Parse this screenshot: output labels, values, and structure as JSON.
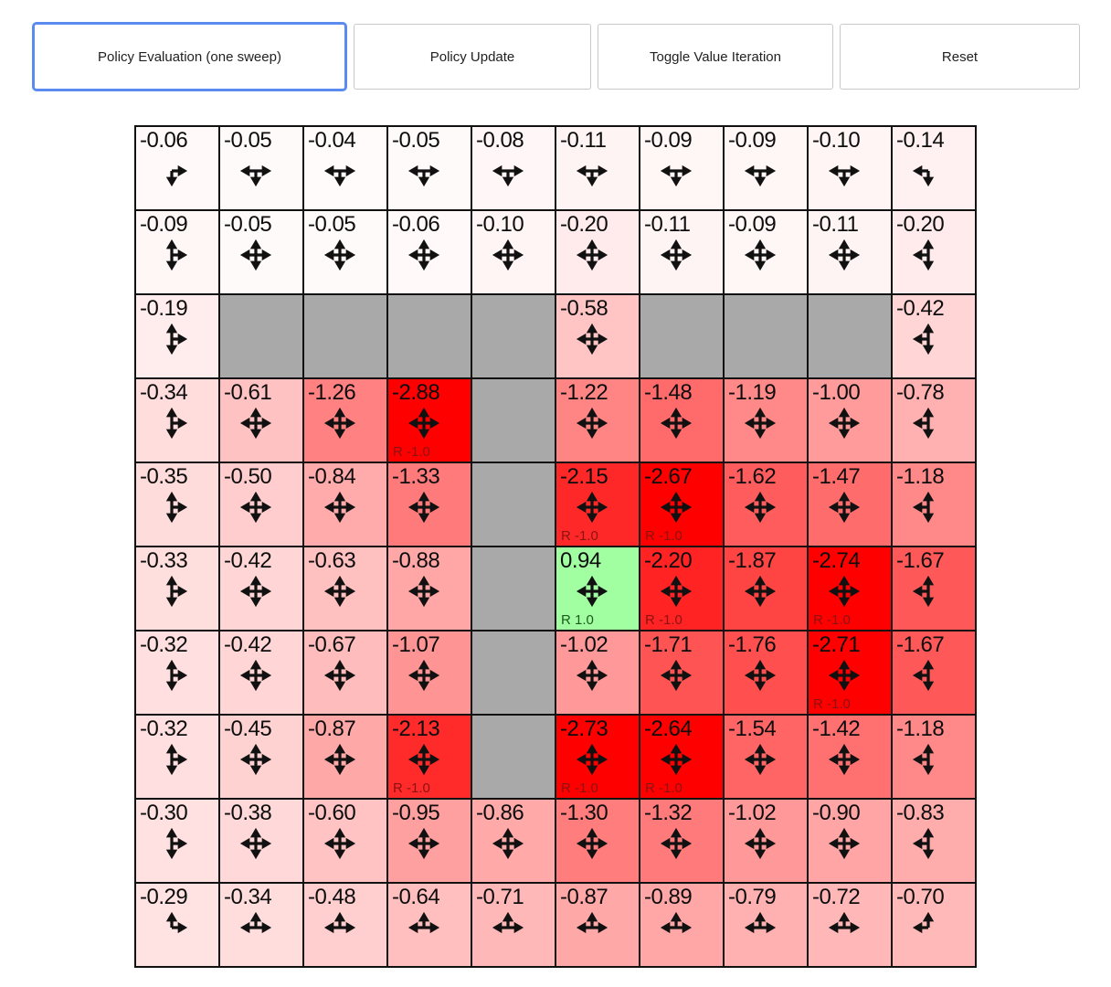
{
  "toolbar": {
    "buttons": [
      {
        "label": "Policy Evaluation (one sweep)",
        "active": true
      },
      {
        "label": "Policy Update",
        "active": false
      },
      {
        "label": "Toggle Value Iteration",
        "active": false
      },
      {
        "label": "Reset",
        "active": false
      }
    ]
  },
  "colors": {
    "accent_focus_border": "#5b8bef",
    "button_border": "#c9c9c9",
    "wall": "#a9a9a9",
    "grid_line": "#111111",
    "arrow": "#111111",
    "value_text": "#0d0d0d",
    "reward_negative_label": "#8b1212",
    "reward_positive_label": "#1c5a1c"
  },
  "grid": {
    "rows": 10,
    "cols": 10,
    "cells": [
      [
        {
          "v": "-0.06",
          "d": "rd"
        },
        {
          "v": "-0.05",
          "d": "lrd"
        },
        {
          "v": "-0.04",
          "d": "lrd"
        },
        {
          "v": "-0.05",
          "d": "lrd"
        },
        {
          "v": "-0.08",
          "d": "lrd"
        },
        {
          "v": "-0.11",
          "d": "lrd"
        },
        {
          "v": "-0.09",
          "d": "lrd"
        },
        {
          "v": "-0.09",
          "d": "lrd"
        },
        {
          "v": "-0.10",
          "d": "lrd"
        },
        {
          "v": "-0.14",
          "d": "ld"
        }
      ],
      [
        {
          "v": "-0.09",
          "d": "urd"
        },
        {
          "v": "-0.05",
          "d": "ulrd"
        },
        {
          "v": "-0.05",
          "d": "ulrd"
        },
        {
          "v": "-0.06",
          "d": "ulrd"
        },
        {
          "v": "-0.10",
          "d": "ulrd"
        },
        {
          "v": "-0.20",
          "d": "ulrd"
        },
        {
          "v": "-0.11",
          "d": "ulrd"
        },
        {
          "v": "-0.09",
          "d": "ulrd"
        },
        {
          "v": "-0.11",
          "d": "ulrd"
        },
        {
          "v": "-0.20",
          "d": "uld"
        }
      ],
      [
        {
          "v": "-0.19",
          "d": "urd"
        },
        {
          "wall": true
        },
        {
          "wall": true
        },
        {
          "wall": true
        },
        {
          "wall": true
        },
        {
          "v": "-0.58",
          "d": "ulrd"
        },
        {
          "wall": true
        },
        {
          "wall": true
        },
        {
          "wall": true
        },
        {
          "v": "-0.42",
          "d": "uld"
        }
      ],
      [
        {
          "v": "-0.34",
          "d": "urd"
        },
        {
          "v": "-0.61",
          "d": "ulrd"
        },
        {
          "v": "-1.26",
          "d": "ulrd"
        },
        {
          "v": "-2.88",
          "d": "ulrd",
          "r": "R -1.0"
        },
        {
          "wall": true
        },
        {
          "v": "-1.22",
          "d": "ulrd"
        },
        {
          "v": "-1.48",
          "d": "ulrd"
        },
        {
          "v": "-1.19",
          "d": "ulrd"
        },
        {
          "v": "-1.00",
          "d": "ulrd"
        },
        {
          "v": "-0.78",
          "d": "uld"
        }
      ],
      [
        {
          "v": "-0.35",
          "d": "urd"
        },
        {
          "v": "-0.50",
          "d": "ulrd"
        },
        {
          "v": "-0.84",
          "d": "ulrd"
        },
        {
          "v": "-1.33",
          "d": "ulrd"
        },
        {
          "wall": true
        },
        {
          "v": "-2.15",
          "d": "ulrd",
          "r": "R -1.0"
        },
        {
          "v": "-2.67",
          "d": "ulrd",
          "r": "R -1.0"
        },
        {
          "v": "-1.62",
          "d": "ulrd"
        },
        {
          "v": "-1.47",
          "d": "ulrd"
        },
        {
          "v": "-1.18",
          "d": "uld"
        }
      ],
      [
        {
          "v": "-0.33",
          "d": "urd"
        },
        {
          "v": "-0.42",
          "d": "ulrd"
        },
        {
          "v": "-0.63",
          "d": "ulrd"
        },
        {
          "v": "-0.88",
          "d": "ulrd"
        },
        {
          "wall": true
        },
        {
          "v": "0.94",
          "d": "ulrd",
          "r": "R 1.0"
        },
        {
          "v": "-2.20",
          "d": "ulrd",
          "r": "R -1.0"
        },
        {
          "v": "-1.87",
          "d": "ulrd"
        },
        {
          "v": "-2.74",
          "d": "ulrd",
          "r": "R -1.0"
        },
        {
          "v": "-1.67",
          "d": "uld"
        }
      ],
      [
        {
          "v": "-0.32",
          "d": "urd"
        },
        {
          "v": "-0.42",
          "d": "ulrd"
        },
        {
          "v": "-0.67",
          "d": "ulrd"
        },
        {
          "v": "-1.07",
          "d": "ulrd"
        },
        {
          "wall": true
        },
        {
          "v": "-1.02",
          "d": "ulrd"
        },
        {
          "v": "-1.71",
          "d": "ulrd"
        },
        {
          "v": "-1.76",
          "d": "ulrd"
        },
        {
          "v": "-2.71",
          "d": "ulrd",
          "r": "R -1.0"
        },
        {
          "v": "-1.67",
          "d": "uld"
        }
      ],
      [
        {
          "v": "-0.32",
          "d": "urd"
        },
        {
          "v": "-0.45",
          "d": "ulrd"
        },
        {
          "v": "-0.87",
          "d": "ulrd"
        },
        {
          "v": "-2.13",
          "d": "ulrd",
          "r": "R -1.0"
        },
        {
          "wall": true
        },
        {
          "v": "-2.73",
          "d": "ulrd",
          "r": "R -1.0"
        },
        {
          "v": "-2.64",
          "d": "ulrd",
          "r": "R -1.0"
        },
        {
          "v": "-1.54",
          "d": "ulrd"
        },
        {
          "v": "-1.42",
          "d": "ulrd"
        },
        {
          "v": "-1.18",
          "d": "uld"
        }
      ],
      [
        {
          "v": "-0.30",
          "d": "urd"
        },
        {
          "v": "-0.38",
          "d": "ulrd"
        },
        {
          "v": "-0.60",
          "d": "ulrd"
        },
        {
          "v": "-0.95",
          "d": "ulrd"
        },
        {
          "v": "-0.86",
          "d": "ulrd"
        },
        {
          "v": "-1.30",
          "d": "ulrd"
        },
        {
          "v": "-1.32",
          "d": "ulrd"
        },
        {
          "v": "-1.02",
          "d": "ulrd"
        },
        {
          "v": "-0.90",
          "d": "ulrd"
        },
        {
          "v": "-0.83",
          "d": "uld"
        }
      ],
      [
        {
          "v": "-0.29",
          "d": "ur"
        },
        {
          "v": "-0.34",
          "d": "ulr"
        },
        {
          "v": "-0.48",
          "d": "ulr"
        },
        {
          "v": "-0.64",
          "d": "ulr"
        },
        {
          "v": "-0.71",
          "d": "ulr"
        },
        {
          "v": "-0.87",
          "d": "ulr"
        },
        {
          "v": "-0.89",
          "d": "ulr"
        },
        {
          "v": "-0.79",
          "d": "ulr"
        },
        {
          "v": "-0.72",
          "d": "ulr"
        },
        {
          "v": "-0.70",
          "d": "ul"
        }
      ]
    ]
  }
}
